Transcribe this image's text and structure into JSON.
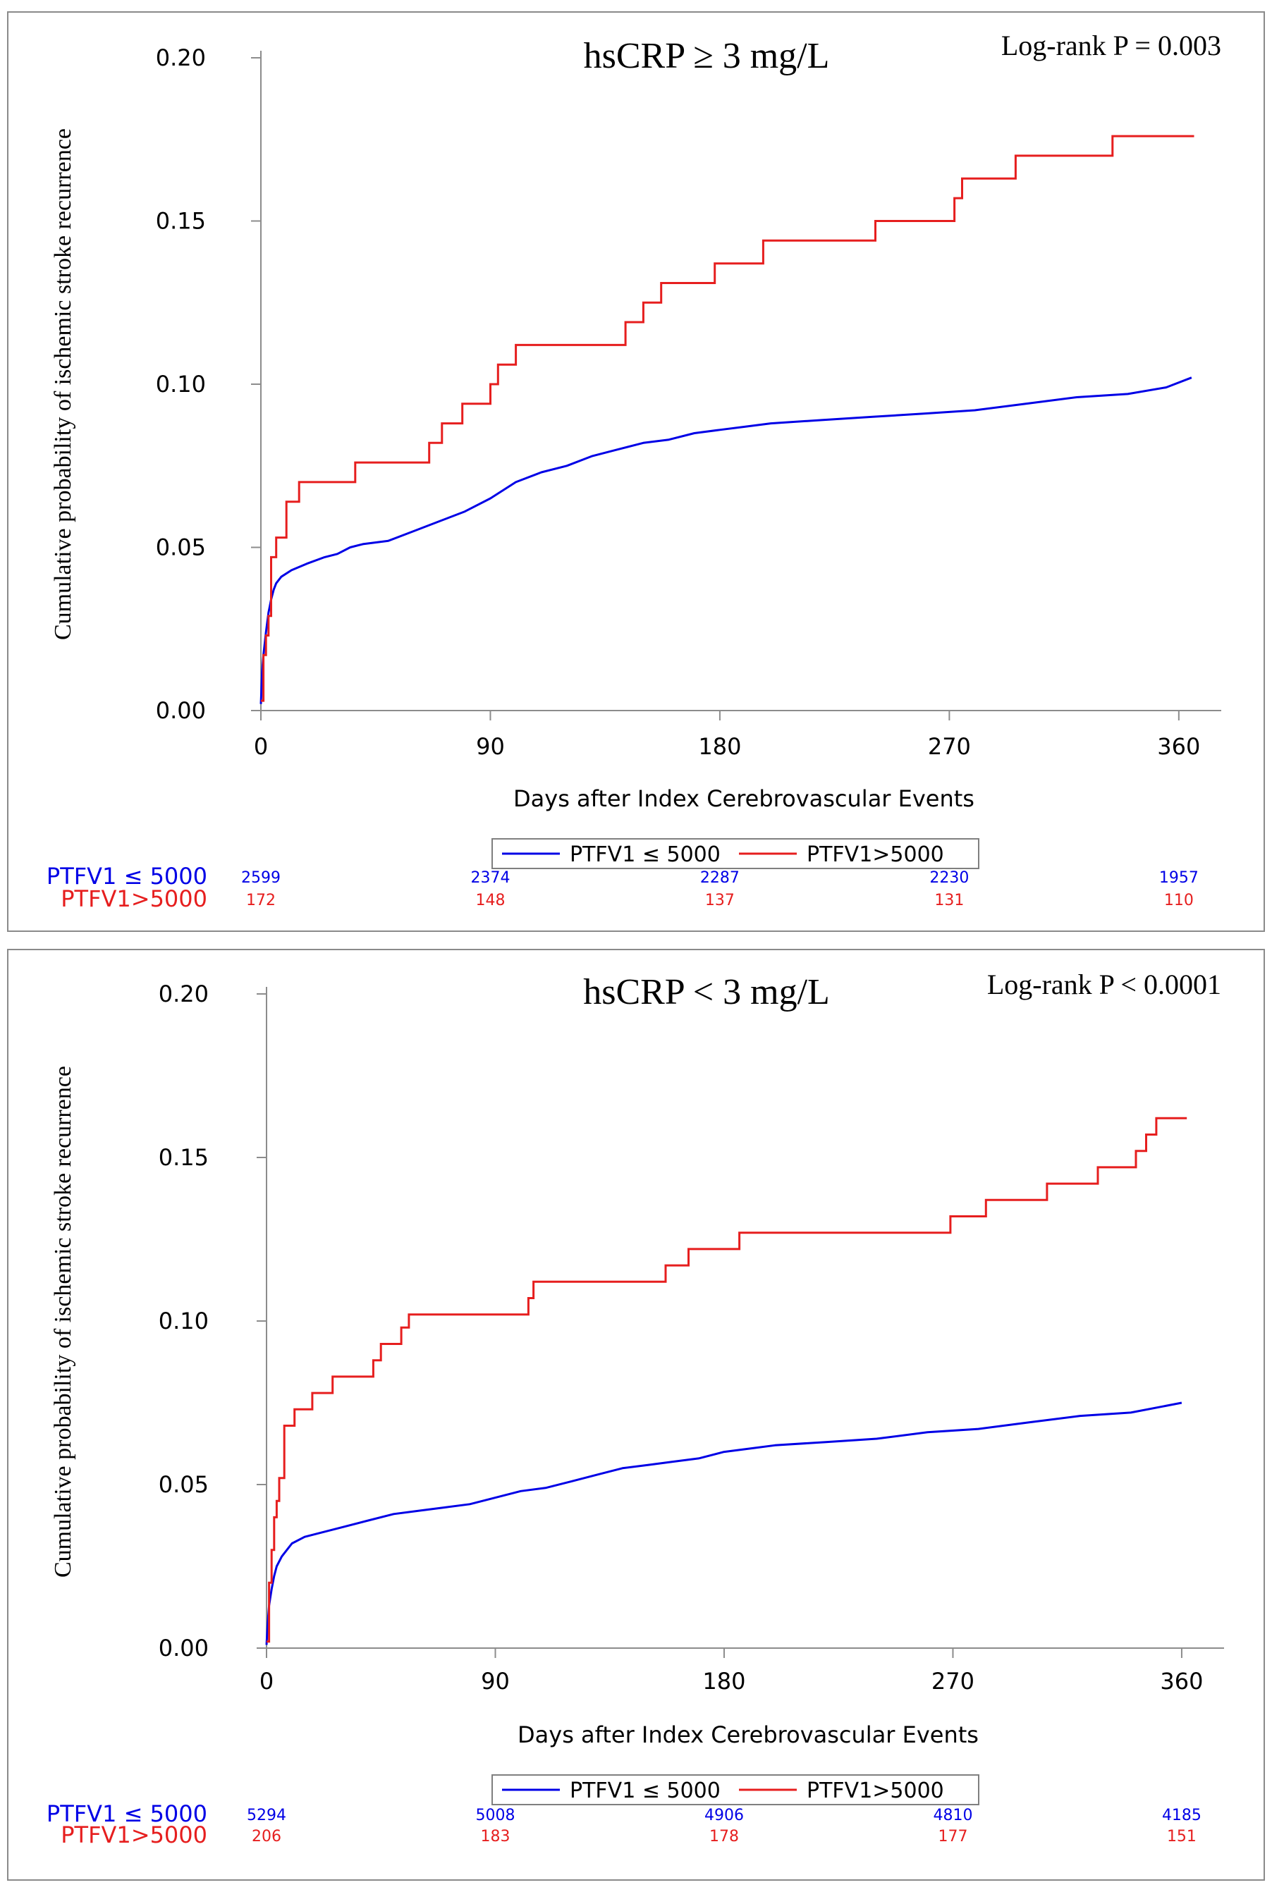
{
  "colors": {
    "low": "#0000e6",
    "high": "#e61e1e",
    "axis": "#8c8c8c",
    "legend_border": "#7f7f7f"
  },
  "chart_data": [
    {
      "type": "line",
      "title": "hsCRP ≥ 3 mg/L",
      "annotation": "Log-rank P = 0.003",
      "xlabel": "Days after Index Cerebrovascular Events",
      "ylabel": "Cumulative probability of ischemic stroke recurrence",
      "xlim": [
        0,
        370
      ],
      "ylim": [
        0,
        0.2
      ],
      "x_ticks": [
        0,
        90,
        180,
        270,
        360
      ],
      "y_ticks": [
        0.0,
        0.05,
        0.1,
        0.15,
        0.2
      ],
      "y_tick_labels": [
        "0.00",
        "0.05",
        "0.10",
        "0.15",
        "0.20"
      ],
      "legend": [
        "PTFV1 ≤ 5000",
        "PTFV1>5000"
      ],
      "series": [
        {
          "name": "PTFV1 ≤ 5000",
          "color": "#0000e6",
          "style": "smooth",
          "points": [
            [
              0,
              0.002
            ],
            [
              0.5,
              0.012
            ],
            [
              1,
              0.017
            ],
            [
              2,
              0.024
            ],
            [
              3,
              0.03
            ],
            [
              4,
              0.034
            ],
            [
              5,
              0.037
            ],
            [
              6,
              0.039
            ],
            [
              8,
              0.041
            ],
            [
              12,
              0.043
            ],
            [
              18,
              0.045
            ],
            [
              25,
              0.047
            ],
            [
              30,
              0.048
            ],
            [
              35,
              0.05
            ],
            [
              40,
              0.051
            ],
            [
              50,
              0.052
            ],
            [
              60,
              0.055
            ],
            [
              70,
              0.058
            ],
            [
              80,
              0.061
            ],
            [
              90,
              0.065
            ],
            [
              100,
              0.07
            ],
            [
              110,
              0.073
            ],
            [
              120,
              0.075
            ],
            [
              130,
              0.078
            ],
            [
              140,
              0.08
            ],
            [
              150,
              0.082
            ],
            [
              160,
              0.083
            ],
            [
              170,
              0.085
            ],
            [
              180,
              0.086
            ],
            [
              190,
              0.087
            ],
            [
              200,
              0.088
            ],
            [
              220,
              0.089
            ],
            [
              240,
              0.09
            ],
            [
              260,
              0.091
            ],
            [
              280,
              0.092
            ],
            [
              300,
              0.094
            ],
            [
              320,
              0.096
            ],
            [
              340,
              0.097
            ],
            [
              355,
              0.099
            ],
            [
              365,
              0.102
            ]
          ]
        },
        {
          "name": "PTFV1>5000",
          "color": "#e61e1e",
          "style": "step",
          "points": [
            [
              0,
              0.003
            ],
            [
              1,
              0.017
            ],
            [
              2,
              0.023
            ],
            [
              3,
              0.029
            ],
            [
              4,
              0.047
            ],
            [
              6,
              0.053
            ],
            [
              10,
              0.064
            ],
            [
              15,
              0.07
            ],
            [
              37,
              0.076
            ],
            [
              66,
              0.082
            ],
            [
              71,
              0.088
            ],
            [
              79,
              0.094
            ],
            [
              90,
              0.1
            ],
            [
              93,
              0.106
            ],
            [
              100,
              0.112
            ],
            [
              143,
              0.119
            ],
            [
              150,
              0.125
            ],
            [
              157,
              0.131
            ],
            [
              178,
              0.137
            ],
            [
              197,
              0.144
            ],
            [
              241,
              0.15
            ],
            [
              272,
              0.157
            ],
            [
              275,
              0.163
            ],
            [
              296,
              0.17
            ],
            [
              334,
              0.176
            ],
            [
              366,
              0.176
            ]
          ]
        }
      ],
      "at_risk": {
        "columns": [
          0,
          90,
          180,
          270,
          360
        ],
        "rows": [
          {
            "label": "PTFV1 ≤ 5000",
            "values": [
              "2599",
              "2374",
              "2287",
              "2230",
              "1957"
            ]
          },
          {
            "label": "PTFV1>5000",
            "values": [
              "172",
              "148",
              "137",
              "131",
              "110"
            ]
          }
        ]
      }
    },
    {
      "type": "line",
      "title": "hsCRP < 3 mg/L",
      "annotation": "Log-rank P < 0.0001",
      "xlabel": "Days after Index Cerebrovascular Events",
      "ylabel": "Cumulative probability of ischemic stroke recurrence",
      "xlim": [
        0,
        370
      ],
      "ylim": [
        0,
        0.2
      ],
      "x_ticks": [
        0,
        90,
        180,
        270,
        360
      ],
      "y_ticks": [
        0.0,
        0.05,
        0.1,
        0.15,
        0.2
      ],
      "y_tick_labels": [
        "0.00",
        "0.05",
        "0.10",
        "0.15",
        "0.20"
      ],
      "legend": [
        "PTFV1 ≤ 5000",
        "PTFV1>5000"
      ],
      "series": [
        {
          "name": "PTFV1 ≤ 5000",
          "color": "#0000e6",
          "style": "smooth",
          "points": [
            [
              0,
              0.001
            ],
            [
              0.5,
              0.008
            ],
            [
              1,
              0.013
            ],
            [
              2,
              0.018
            ],
            [
              3,
              0.022
            ],
            [
              4,
              0.025
            ],
            [
              6,
              0.028
            ],
            [
              8,
              0.03
            ],
            [
              10,
              0.032
            ],
            [
              15,
              0.034
            ],
            [
              20,
              0.035
            ],
            [
              30,
              0.037
            ],
            [
              40,
              0.039
            ],
            [
              50,
              0.041
            ],
            [
              60,
              0.042
            ],
            [
              70,
              0.043
            ],
            [
              80,
              0.044
            ],
            [
              90,
              0.046
            ],
            [
              100,
              0.048
            ],
            [
              110,
              0.049
            ],
            [
              120,
              0.051
            ],
            [
              130,
              0.053
            ],
            [
              140,
              0.055
            ],
            [
              150,
              0.056
            ],
            [
              160,
              0.057
            ],
            [
              170,
              0.058
            ],
            [
              180,
              0.06
            ],
            [
              190,
              0.061
            ],
            [
              200,
              0.062
            ],
            [
              220,
              0.063
            ],
            [
              240,
              0.064
            ],
            [
              260,
              0.066
            ],
            [
              280,
              0.067
            ],
            [
              300,
              0.069
            ],
            [
              320,
              0.071
            ],
            [
              340,
              0.072
            ],
            [
              360,
              0.075
            ]
          ]
        },
        {
          "name": "PTFV1>5000",
          "color": "#e61e1e",
          "style": "step",
          "points": [
            [
              0,
              0.002
            ],
            [
              1,
              0.02
            ],
            [
              2,
              0.03
            ],
            [
              3,
              0.04
            ],
            [
              4,
              0.045
            ],
            [
              5,
              0.052
            ],
            [
              7,
              0.068
            ],
            [
              11,
              0.073
            ],
            [
              18,
              0.078
            ],
            [
              26,
              0.083
            ],
            [
              42,
              0.088
            ],
            [
              45,
              0.093
            ],
            [
              53,
              0.098
            ],
            [
              56,
              0.102
            ],
            [
              103,
              0.107
            ],
            [
              105,
              0.112
            ],
            [
              157,
              0.117
            ],
            [
              166,
              0.122
            ],
            [
              186,
              0.127
            ],
            [
              269,
              0.132
            ],
            [
              283,
              0.137
            ],
            [
              307,
              0.142
            ],
            [
              327,
              0.147
            ],
            [
              342,
              0.152
            ],
            [
              346,
              0.157
            ],
            [
              350,
              0.162
            ],
            [
              362,
              0.162
            ]
          ]
        }
      ],
      "at_risk": {
        "columns": [
          0,
          90,
          180,
          270,
          360
        ],
        "rows": [
          {
            "label": "PTFV1 ≤ 5000",
            "values": [
              "5294",
              "5008",
              "4906",
              "4810",
              "4185"
            ]
          },
          {
            "label": "PTFV1>5000",
            "values": [
              "206",
              "183",
              "178",
              "177",
              "151"
            ]
          }
        ]
      }
    }
  ]
}
